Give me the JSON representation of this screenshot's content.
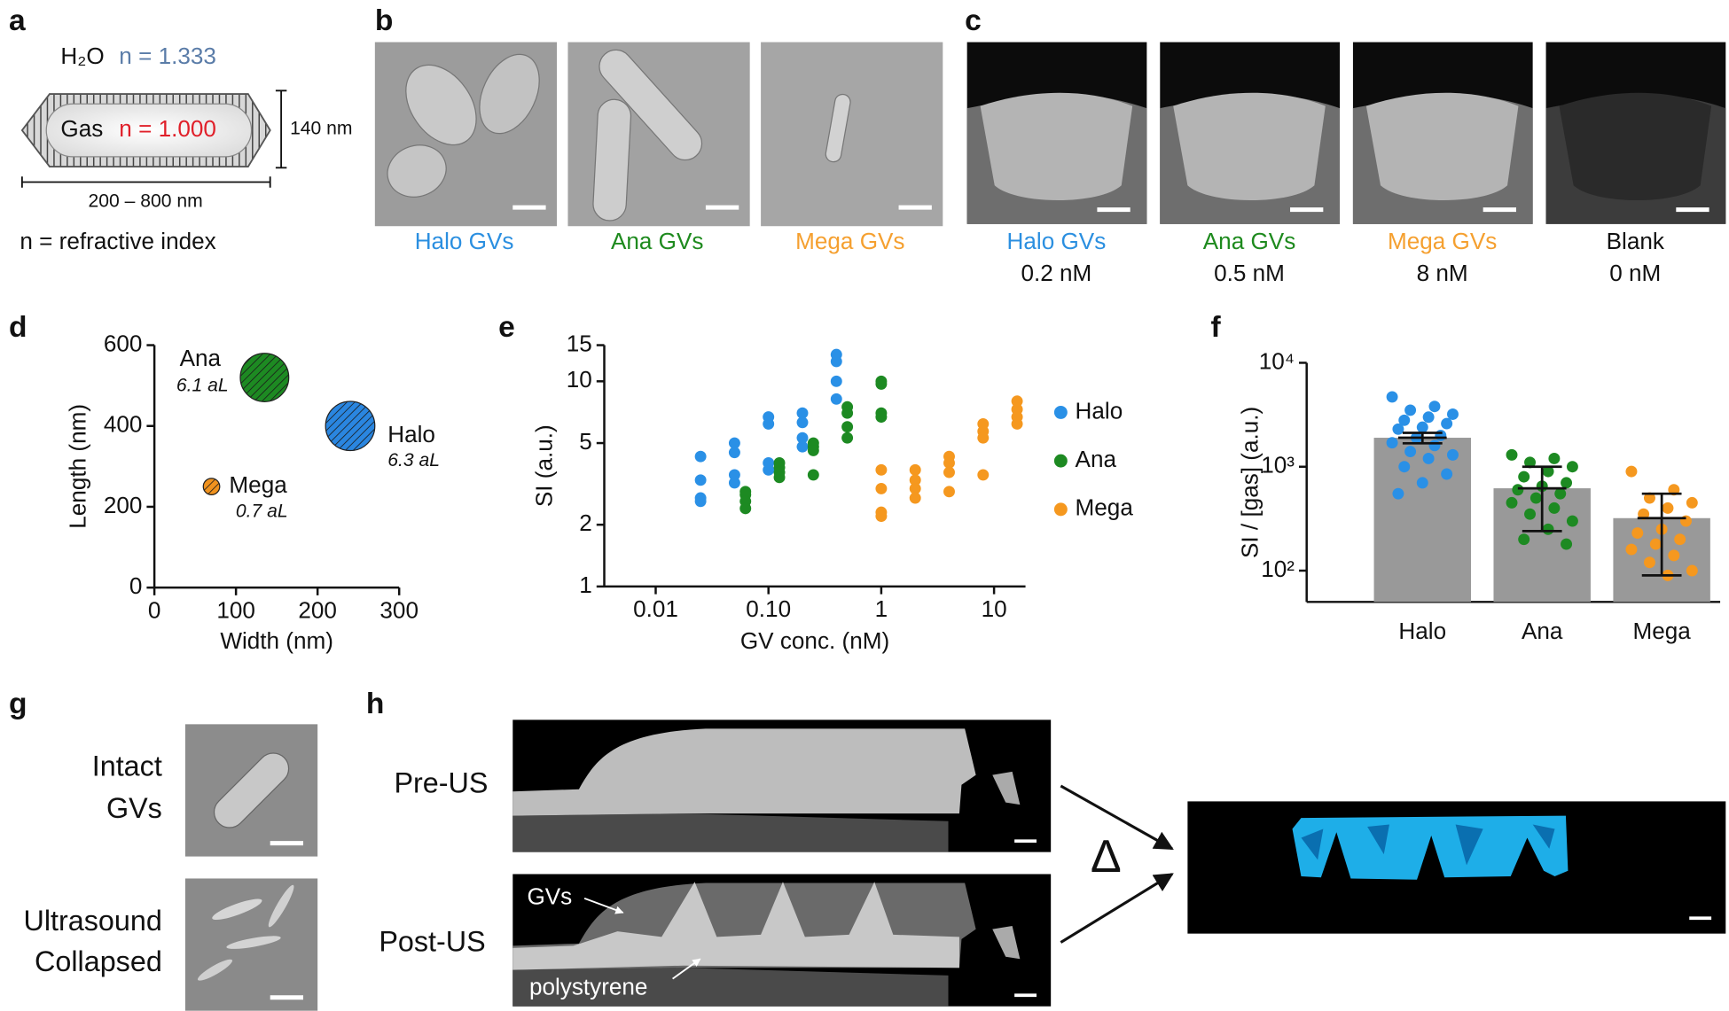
{
  "panels": {
    "a": {
      "letter": "a",
      "medium": "H₂O",
      "medium_index": "n = 1.333",
      "core": "Gas",
      "core_index": "n = 1.000",
      "height": "140 nm",
      "length": "200 – 800 nm",
      "legend": "n = refractive index"
    },
    "b": {
      "letter": "b",
      "labels": [
        "Halo GVs",
        "Ana GVs",
        "Mega GVs"
      ]
    },
    "c": {
      "letter": "c",
      "labels": [
        "Halo GVs",
        "Ana GVs",
        "Mega GVs",
        "Blank"
      ],
      "concentrations": [
        "0.2 nM",
        "0.5 nM",
        "8 nM",
        "0 nM"
      ]
    },
    "g": {
      "letter": "g",
      "rows": [
        [
          "Intact",
          "GVs"
        ],
        [
          "Ultrasound",
          "Collapsed"
        ]
      ]
    },
    "h": {
      "letter": "h",
      "rows": [
        "Pre-US",
        "Post-US"
      ],
      "annotations": [
        "GVs",
        "polystyrene"
      ],
      "operator": "Δ"
    }
  },
  "chart_data": [
    {
      "type": "bubble",
      "letter": "d",
      "xlabel": "Width (nm)",
      "ylabel": "Length (nm)",
      "xlim": [
        0,
        300
      ],
      "xticks": [
        0,
        100,
        200,
        300
      ],
      "ylim": [
        0,
        600
      ],
      "yticks": [
        0,
        200,
        400,
        600
      ],
      "hatch": true,
      "series": [
        {
          "name": "Ana",
          "color": "#1d8a22",
          "x": [
            135
          ],
          "values": [
            520
          ],
          "sizes": [
            6.1
          ],
          "size_labels": [
            "6.1 aL"
          ]
        },
        {
          "name": "Halo",
          "color": "#2a86e0",
          "x": [
            240
          ],
          "values": [
            400
          ],
          "sizes": [
            6.3
          ],
          "size_labels": [
            "6.3 aL"
          ]
        },
        {
          "name": "Mega",
          "color": "#f0921e",
          "x": [
            70
          ],
          "values": [
            250
          ],
          "sizes": [
            0.7
          ],
          "size_labels": [
            "0.7 aL"
          ]
        }
      ]
    },
    {
      "type": "scatter",
      "letter": "e",
      "xlabel": "GV conc. (nM)",
      "ylabel": "SI (a.u.)",
      "xscale": "log",
      "yscale": "log",
      "xlim": [
        0.0035,
        19
      ],
      "xticks": [
        0.01,
        {
          "value": 0.1,
          "label": "0.10"
        },
        1,
        10
      ],
      "ylim": [
        1,
        15
      ],
      "yticks": [
        1,
        2,
        5,
        10,
        15
      ],
      "legend": "right",
      "series": [
        {
          "name": "Halo",
          "color": "#2a90e6",
          "x": [
            0.025,
            0.025,
            0.025,
            0.025,
            0.05,
            0.05,
            0.05,
            0.05,
            0.1,
            0.1,
            0.1,
            0.1,
            0.2,
            0.2,
            0.2,
            0.2,
            0.4,
            0.4,
            0.4,
            0.4
          ],
          "values": [
            4.3,
            3.3,
            2.7,
            2.6,
            5,
            4.5,
            3.5,
            3.2,
            6.7,
            6.2,
            4,
            3.7,
            7,
            6.3,
            5.3,
            4.8,
            13.5,
            12.5,
            10,
            8.2
          ]
        },
        {
          "name": "Ana",
          "color": "#1d8a22",
          "x": [
            0.0625,
            0.0625,
            0.0625,
            0.0625,
            0.125,
            0.125,
            0.125,
            0.125,
            0.25,
            0.25,
            0.25,
            0.25,
            0.5,
            0.5,
            0.5,
            0.5,
            1,
            1,
            1,
            1
          ],
          "values": [
            2.9,
            2.8,
            2.6,
            2.4,
            4,
            3.8,
            3.6,
            3.4,
            5,
            4.8,
            4.6,
            3.5,
            7.5,
            7,
            6,
            5.3,
            10,
            9.7,
            7,
            6.7
          ]
        },
        {
          "name": "Mega",
          "color": "#f5981f",
          "x": [
            1,
            1,
            1,
            1,
            2,
            2,
            2,
            2,
            4,
            4,
            4,
            4,
            8,
            8,
            8,
            8,
            16,
            16,
            16,
            16
          ],
          "values": [
            3.7,
            3,
            2.3,
            2.2,
            3.7,
            3.3,
            3,
            2.7,
            4.3,
            4,
            3.6,
            2.9,
            6.2,
            5.7,
            5.3,
            3.5,
            8,
            7.3,
            6.7,
            6.2
          ]
        }
      ]
    },
    {
      "type": "bar",
      "letter": "f",
      "ylabel": "SI / [gas] (a.u.)",
      "yscale": "log",
      "ylim": [
        50,
        10000
      ],
      "yticks": [
        {
          "value": 100,
          "label": "10²"
        },
        {
          "value": 1000,
          "label": "10³"
        },
        {
          "value": 10000,
          "label": "10⁴"
        }
      ],
      "categories": [
        "Halo",
        "Ana",
        "Mega"
      ],
      "values": [
        1900,
        620,
        320
      ],
      "errors": [
        220,
        380,
        230
      ],
      "color": "#999999",
      "point_colors": [
        "#2a90e6",
        "#1d8a22",
        "#f5981f"
      ],
      "points": [
        [
          4700,
          3800,
          3500,
          3200,
          3000,
          2800,
          2600,
          2400,
          2300,
          2000,
          1900,
          1700,
          1600,
          1400,
          1300,
          1200,
          1000,
          850,
          700,
          550
        ],
        [
          1300,
          1200,
          1100,
          1000,
          900,
          800,
          700,
          650,
          600,
          550,
          500,
          450,
          400,
          350,
          300,
          250,
          200,
          180
        ],
        [
          900,
          600,
          500,
          450,
          400,
          350,
          300,
          250,
          230,
          200,
          180,
          160,
          140,
          120,
          100,
          90
        ]
      ]
    }
  ]
}
